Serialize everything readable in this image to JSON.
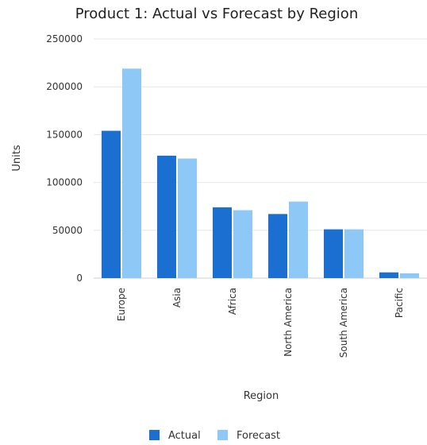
{
  "chart_data": {
    "type": "bar",
    "title": "Product 1: Actual vs Forecast by Region",
    "xlabel": "Region",
    "ylabel": "Units",
    "categories": [
      "Europe",
      "Asia",
      "Africa",
      "North America",
      "South America",
      "Pacific"
    ],
    "series": [
      {
        "name": "Actual",
        "color": "#1a6fd1",
        "values": [
          154000,
          128000,
          74000,
          67000,
          51000,
          6000
        ]
      },
      {
        "name": "Forecast",
        "color": "#8ec8f6",
        "values": [
          219000,
          125000,
          71000,
          80000,
          51000,
          5000
        ]
      }
    ],
    "ylim": [
      0,
      250000
    ],
    "yticks": [
      "0",
      "50000",
      "100000",
      "150000",
      "200000",
      "250000"
    ],
    "grid": true,
    "legend_position": "bottom"
  }
}
